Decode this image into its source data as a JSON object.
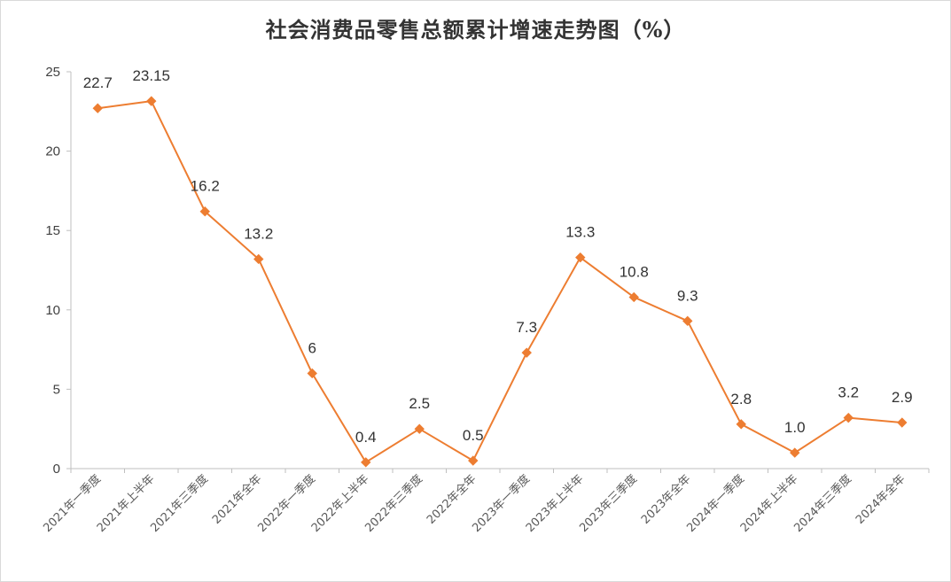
{
  "chart_data": {
    "type": "line",
    "title": "社会消费品零售总额累计增速走势图（%）",
    "xlabel": "",
    "ylabel": "",
    "ylim": [
      0,
      25
    ],
    "yticks": [
      0,
      5,
      10,
      15,
      20,
      25
    ],
    "grid": false,
    "legend": "none",
    "color": "#ED7D31",
    "categories": [
      "2021年一季度",
      "2021年上半年",
      "2021年三季度",
      "2021年全年",
      "2022年一季度",
      "2022年上半年",
      "2022年三季度",
      "2022年全年",
      "2023年一季度",
      "2023年上半年",
      "2023年三季度",
      "2023年全年",
      "2024年一季度",
      "2024年上半年",
      "2024年三季度",
      "2024年全年"
    ],
    "values": [
      22.7,
      23.15,
      16.2,
      13.2,
      6,
      0.4,
      2.5,
      0.5,
      7.3,
      13.3,
      10.8,
      9.3,
      2.8,
      1.0,
      3.2,
      2.9
    ],
    "data_labels": [
      "22.7",
      "23.15",
      "16.2",
      "13.2",
      "6",
      "0.4",
      "2.5",
      "0.5",
      "7.3",
      "13.3",
      "10.8",
      "9.3",
      "2.8",
      "1.0",
      "3.2",
      "2.9"
    ]
  }
}
